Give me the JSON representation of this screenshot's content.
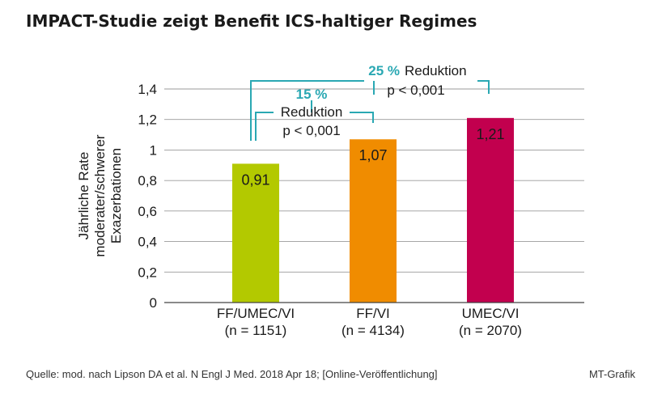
{
  "title": "IMPACT-Studie zeigt Benefit ICS-haltiger Regimes",
  "footer": {
    "source": "Quelle: mod. nach Lipson DA et al. N Engl J Med. 2018 Apr 18; [Online-Veröffentlichung]",
    "credit": "MT-Grafik"
  },
  "colors": {
    "accent": "#2aa8b3",
    "bar_ff_umec_vi": "#b3c900",
    "bar_ff_vi": "#f08c00",
    "bar_umec_vi": "#c2004e"
  },
  "chart_data": {
    "type": "bar",
    "categories": [
      "FF/UMEC/VI",
      "FF/VI",
      "UMEC/VI"
    ],
    "category_n": [
      "(n = 1151)",
      "(n = 4134)",
      "(n = 2070)"
    ],
    "values": [
      0.91,
      1.07,
      1.21
    ],
    "value_labels": [
      "0,91",
      "1,07",
      "1,21"
    ],
    "ylabel_lines": [
      "Jährliche Rate",
      "moderater/schwerer",
      "Exazerbationen"
    ],
    "ylim": [
      0,
      1.4
    ],
    "yticks": [
      0,
      0.2,
      0.4,
      0.6,
      0.8,
      1,
      1.2,
      1.4
    ],
    "ytick_labels": [
      "0",
      "0,2",
      "0,4",
      "0,6",
      "0,8",
      "1",
      "1,2",
      "1,4"
    ],
    "grid": true,
    "annotations": [
      {
        "from": "FF/UMEC/VI",
        "to": "FF/VI",
        "percent": "15 %",
        "text": "Reduktion",
        "p": "p < 0,001"
      },
      {
        "from": "FF/UMEC/VI",
        "to": "UMEC/VI",
        "percent": "25 %",
        "text": "Reduktion",
        "p": "p < 0,001"
      }
    ]
  }
}
